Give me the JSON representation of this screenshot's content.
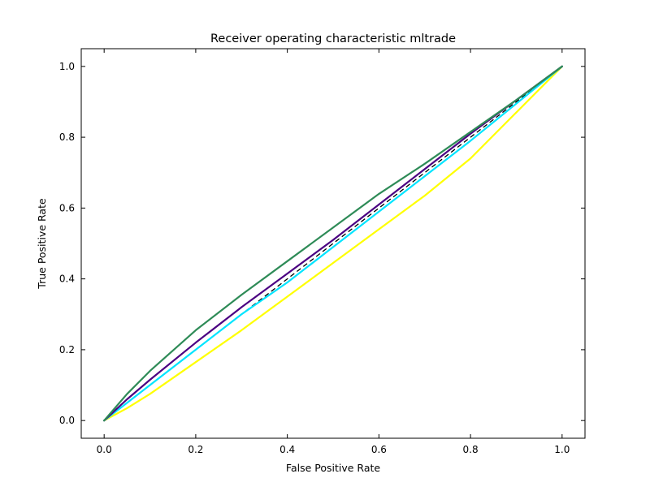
{
  "chart_data": {
    "type": "line",
    "title": "Receiver operating characteristic mltrade",
    "xlabel": "False Positive Rate",
    "ylabel": "True Positive Rate",
    "xlim": [
      -0.05,
      1.05
    ],
    "ylim": [
      -0.05,
      1.05
    ],
    "xticks": [
      "0.0",
      "0.2",
      "0.4",
      "0.6",
      "0.8",
      "1.0"
    ],
    "yticks": [
      "0.0",
      "0.2",
      "0.4",
      "0.6",
      "0.8",
      "1.0"
    ],
    "grid": false,
    "legend": "none",
    "reference_line": {
      "x": [
        0,
        1
      ],
      "y": [
        0,
        1
      ],
      "color": "#000000",
      "style": "dashed"
    },
    "series": [
      {
        "color": "#ffff00",
        "x": [
          0,
          0.05,
          0.1,
          0.2,
          0.3,
          0.4,
          0.5,
          0.6,
          0.7,
          0.8,
          0.9,
          1.0
        ],
        "y": [
          0,
          0.035,
          0.075,
          0.165,
          0.255,
          0.35,
          0.445,
          0.54,
          0.635,
          0.74,
          0.87,
          1.0
        ]
      },
      {
        "color": "#00e5ff",
        "x": [
          0,
          0.05,
          0.1,
          0.2,
          0.3,
          0.4,
          0.5,
          0.6,
          0.7,
          0.8,
          0.9,
          1.0
        ],
        "y": [
          0,
          0.05,
          0.1,
          0.2,
          0.3,
          0.39,
          0.49,
          0.59,
          0.69,
          0.79,
          0.895,
          1.0
        ]
      },
      {
        "color": "#4b0082",
        "x": [
          0,
          0.05,
          0.1,
          0.2,
          0.3,
          0.4,
          0.5,
          0.6,
          0.7,
          0.8,
          0.9,
          1.0
        ],
        "y": [
          0,
          0.06,
          0.115,
          0.22,
          0.32,
          0.415,
          0.51,
          0.61,
          0.71,
          0.81,
          0.905,
          1.0
        ]
      },
      {
        "color": "#2e8b57",
        "x": [
          0,
          0.05,
          0.1,
          0.2,
          0.3,
          0.4,
          0.5,
          0.6,
          0.7,
          0.8,
          0.9,
          1.0
        ],
        "y": [
          0,
          0.075,
          0.14,
          0.255,
          0.355,
          0.45,
          0.545,
          0.64,
          0.725,
          0.815,
          0.905,
          1.0
        ]
      }
    ]
  }
}
